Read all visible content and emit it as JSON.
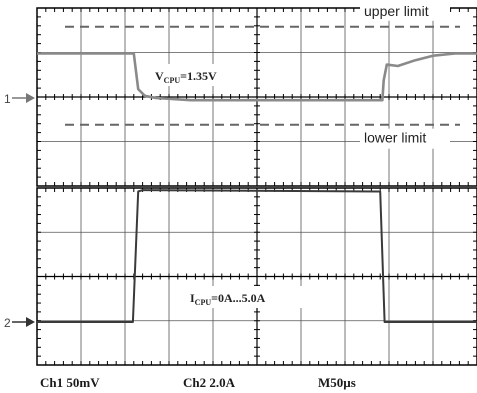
{
  "chart_data": [
    {
      "type": "line",
      "title": "",
      "xlabel": "",
      "ylabel": "",
      "x_divisions": 10,
      "y_divisions": 4,
      "grid": true,
      "color_trace": "#8a8a8a",
      "color_limit": "#666666",
      "channel_marker": "1",
      "limits": [
        {
          "name": "upper limit",
          "level_div": 1.6
        },
        {
          "name": "lower limit",
          "level_div": -0.6
        }
      ],
      "annotation": {
        "main": "V",
        "sub": "CPU",
        "rest": "=1.35V"
      },
      "series": [
        {
          "x_div": [
            0,
            2.2,
            2.25,
            2.3,
            2.45,
            2.7,
            3.5,
            5.0,
            7.0,
            7.85,
            7.88,
            7.95,
            8.2,
            8.6,
            9.0,
            9.5,
            10.0
          ],
          "y_div": [
            1.0,
            1.0,
            0.6,
            0.2,
            0.05,
            0.0,
            -0.05,
            -0.05,
            -0.05,
            -0.05,
            0.4,
            0.75,
            0.72,
            0.85,
            0.95,
            1.0,
            1.0
          ]
        }
      ]
    },
    {
      "type": "line",
      "title": "",
      "xlabel": "",
      "ylabel": "",
      "x_divisions": 10,
      "y_divisions": 4,
      "grid": true,
      "color_trace": "#3a3a3a",
      "channel_marker": "2",
      "annotation": {
        "main": "I",
        "sub": "CPU",
        "rest": "=0A...5.0A"
      },
      "series": [
        {
          "x_div": [
            0,
            2.18,
            2.3,
            2.4,
            7.75,
            7.8,
            7.9,
            10.0
          ],
          "y_div": [
            0,
            0,
            2.95,
            2.98,
            2.95,
            2.95,
            0,
            0
          ]
        }
      ]
    }
  ],
  "footer": {
    "ch1": "Ch1 50mV",
    "ch2": "Ch2 2.0A",
    "time_prefix": "M50",
    "time_unit": "µs"
  }
}
